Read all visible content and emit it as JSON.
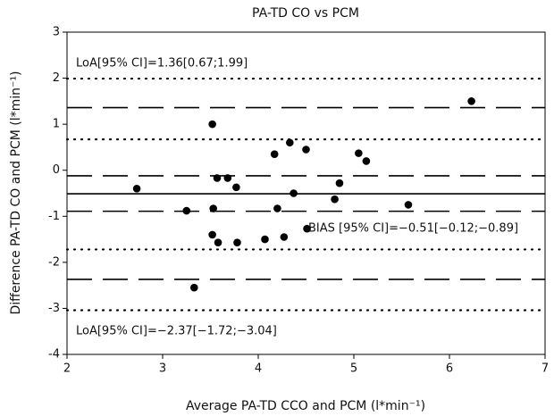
{
  "chart_data": {
    "type": "scatter",
    "title": "PA-TD CO vs PCM",
    "x_label": "Average PA-TD CCO and PCM (l*min⁻¹)",
    "y_label": "Difference PA-TD CO and PCM (l*min⁻¹)",
    "xlim": [
      2,
      7
    ],
    "ylim": [
      -4,
      3
    ],
    "xticks": [
      2,
      3,
      4,
      5,
      6,
      7
    ],
    "yticks": [
      -4,
      -3,
      -2,
      -1,
      0,
      1,
      2,
      3
    ],
    "color": "#000000",
    "series": [
      {
        "x": [
          2.73,
          3.25,
          3.33,
          3.52,
          3.52,
          3.53,
          3.57,
          3.58,
          3.68,
          3.77,
          3.78,
          4.07,
          4.17,
          4.2,
          4.27,
          4.33,
          4.37,
          4.5,
          4.51,
          4.8,
          4.85,
          5.05,
          5.13,
          5.57,
          6.23
        ],
        "values": [
          -0.4,
          -0.88,
          -2.55,
          1.0,
          -1.4,
          -0.83,
          -0.17,
          -1.57,
          -0.17,
          -0.37,
          -1.57,
          -1.5,
          0.35,
          -0.83,
          -1.45,
          0.6,
          -0.5,
          0.45,
          -1.27,
          -0.63,
          -0.28,
          0.37,
          0.2,
          -0.75,
          1.5
        ]
      }
    ],
    "reference_lines": [
      {
        "value": 1.99,
        "style": "dotted"
      },
      {
        "value": 1.36,
        "style": "dashed"
      },
      {
        "value": 0.67,
        "style": "dotted"
      },
      {
        "value": -0.12,
        "style": "dashed"
      },
      {
        "value": -0.51,
        "style": "solid"
      },
      {
        "value": -0.89,
        "style": "dashed"
      },
      {
        "value": -1.72,
        "style": "dotted"
      },
      {
        "value": -2.37,
        "style": "dashed"
      },
      {
        "value": -3.04,
        "style": "dotted"
      }
    ],
    "annotations": [
      "LoA[95% CI]=1.36[0.67;1.99]",
      "BIAS [95% CI]=−0.51[−0.12;−0.89]",
      "LoA[95% CI]=−2.37[−1.72;−3.04]"
    ]
  }
}
